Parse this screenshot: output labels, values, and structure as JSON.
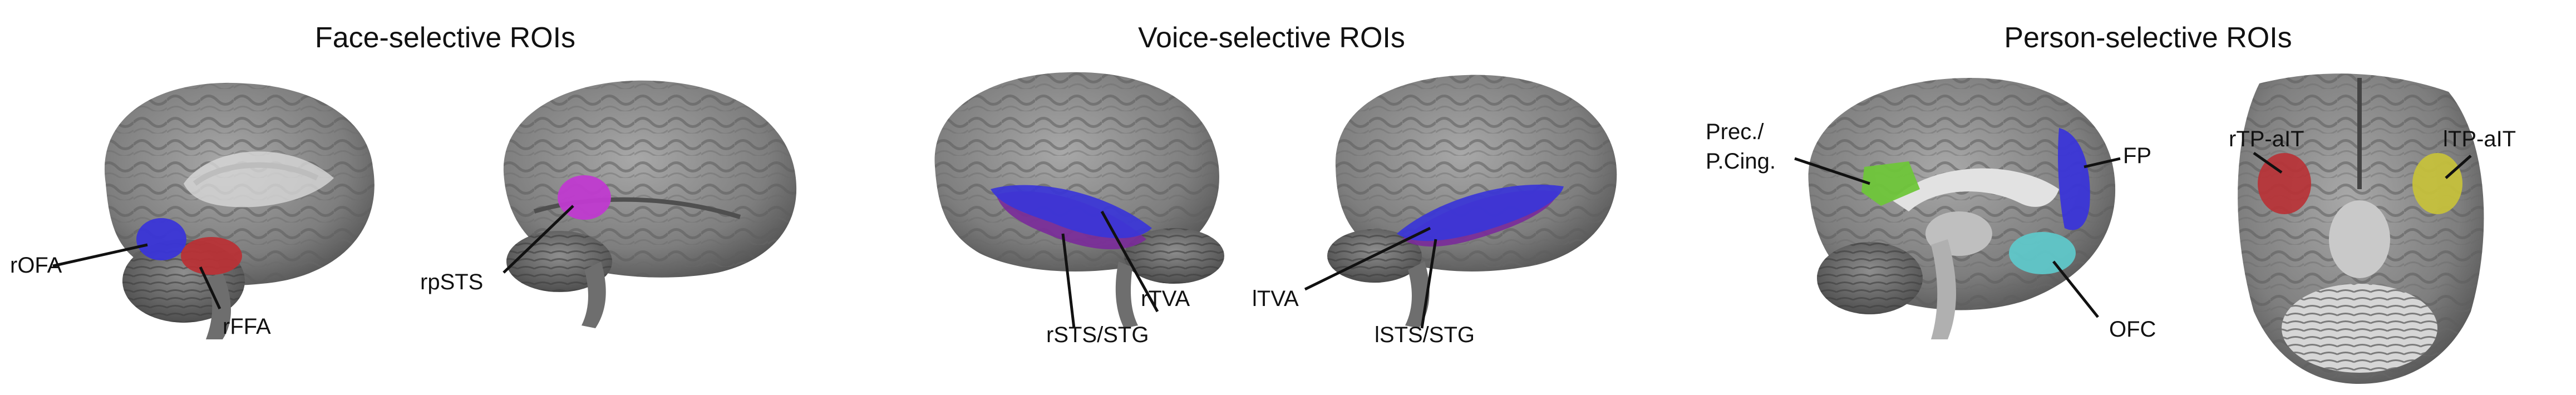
{
  "panels": [
    {
      "title": "Face-selective ROIs",
      "labels": [
        "rOFA",
        "rFFA",
        "rpSTS"
      ]
    },
    {
      "title": "Voice-selective ROIs",
      "labels": [
        "rTVA",
        "rSTS/STG",
        "lTVA",
        "lSTS/STG"
      ]
    },
    {
      "title": "Person-selective ROIs",
      "labels": [
        "Prec./",
        "P.Cing.",
        "FP",
        "OFC",
        "rTP-aIT",
        "lTP-aIT"
      ]
    }
  ],
  "colors": {
    "brain": "#8a8a8a",
    "brain_dark": "#5a5a5a",
    "roi_blue": "#3a35d8",
    "roi_red": "#b83236",
    "roi_magenta": "#c03ad0",
    "roi_purple": "#7a2a9a",
    "roi_green": "#6fc63a",
    "roi_cyan": "#5fc7c9",
    "roi_yellow": "#c8c23a"
  }
}
